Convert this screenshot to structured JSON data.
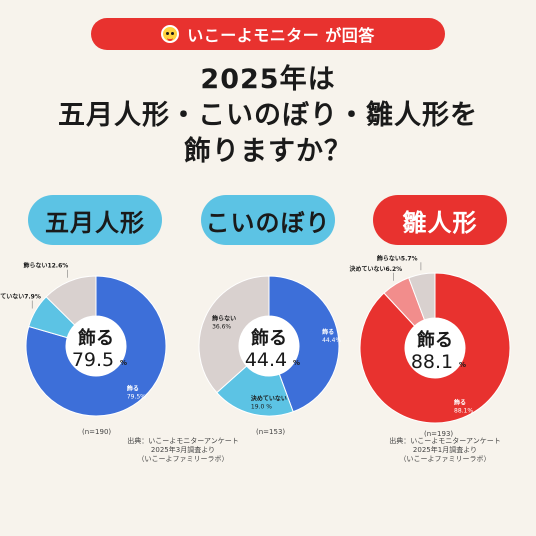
{
  "banner": {
    "text": "いこーよモニター が回答",
    "logo_icon": "smiley-face-icon"
  },
  "title": {
    "line1": "2025年は",
    "line2": "五月人形・こいのぼり・雛人形を",
    "line3": "飾りますか？"
  },
  "colors": {
    "background": "#f7f3ec",
    "banner_red": "#e8322f",
    "pill_blue": "#5cc3e4",
    "pill_red": "#e8322f"
  },
  "chart_data": [
    {
      "type": "pie",
      "title": "五月人形",
      "n_label": "(n=190)",
      "center_label": "飾る",
      "center_value": "79.5",
      "center_unit": "%",
      "source": [
        "出典：いこーよモニターアンケート",
        "2025年3月調査より",
        "（いこーよファミリーラボ）"
      ],
      "slices": [
        {
          "label": "飾る",
          "value": 79.5,
          "value_text": "79.5%",
          "color": "#3d6fd9"
        },
        {
          "label": "決めていない",
          "value": 7.9,
          "value_text": "7.9%",
          "color": "#5cc3e4"
        },
        {
          "label": "飾らない",
          "value": 12.6,
          "value_text": "12.6%",
          "color": "#d9d1cf"
        }
      ]
    },
    {
      "type": "pie",
      "title": "こいのぼり",
      "n_label": "(n=153)",
      "center_label": "飾る",
      "center_value": "44.4",
      "center_unit": "%",
      "source": [],
      "slices": [
        {
          "label": "飾る",
          "value": 44.4,
          "value_text": "44.4%",
          "color": "#3d6fd9"
        },
        {
          "label": "決めていない",
          "value": 19.0,
          "value_text": "19.0 %",
          "color": "#5cc3e4"
        },
        {
          "label": "飾らない",
          "value": 36.6,
          "value_text": "36.6%",
          "color": "#d9d1cf"
        }
      ]
    },
    {
      "type": "pie",
      "title": "雛人形",
      "n_label": "(n=193)",
      "center_label": "飾る",
      "center_value": "88.1",
      "center_unit": "%",
      "source": [
        "出典：いこーよモニターアンケート",
        "2025年1月調査より",
        "（いこーよファミリーラボ）"
      ],
      "slices": [
        {
          "label": "飾る",
          "value": 88.1,
          "value_text": "88.1%",
          "color": "#e8322f"
        },
        {
          "label": "決めていない",
          "value": 6.2,
          "value_text": "6.2%",
          "color": "#f28d8c"
        },
        {
          "label": "飾らない",
          "value": 5.7,
          "value_text": "5.7%",
          "color": "#d9d1cf"
        }
      ]
    }
  ]
}
